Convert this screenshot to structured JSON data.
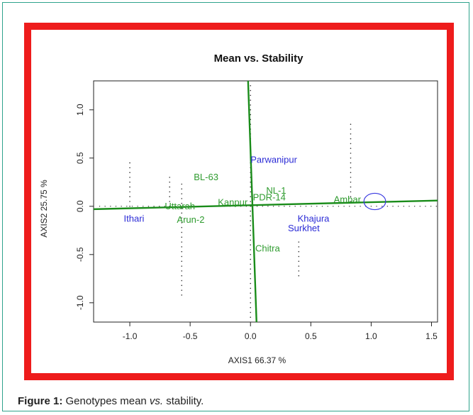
{
  "figure": {
    "caption_label": "Figure 1:",
    "caption_pre": "Genotypes mean ",
    "caption_italic": "vs.",
    "caption_post": " stability."
  },
  "colors": {
    "frame": "#ee1c1c",
    "line": "#1a8c1a",
    "genotype_label": "#2b2bd6",
    "environment_label": "#2e9b2e",
    "circle": "#3a3ae0",
    "points": "#333333"
  },
  "chart_data": {
    "type": "scatter",
    "title": "Mean vs. Stability",
    "xlabel": "AXIS1 66.37 %",
    "ylabel": "AXIS2 25.75 %",
    "xlim": [
      -1.3,
      1.55
    ],
    "ylim": [
      -1.2,
      1.3
    ],
    "x_ticks": [
      {
        "v": -1.0,
        "label": "-1.0"
      },
      {
        "v": -0.5,
        "label": "-0.5"
      },
      {
        "v": 0.0,
        "label": "0.0"
      },
      {
        "v": 0.5,
        "label": "0.5"
      },
      {
        "v": 1.0,
        "label": "1.0"
      },
      {
        "v": 1.5,
        "label": "1.5"
      }
    ],
    "y_ticks": [
      {
        "v": -1.0,
        "label": "-1.0"
      },
      {
        "v": -0.5,
        "label": "-0.5"
      },
      {
        "v": 0.0,
        "label": "0.0"
      },
      {
        "v": 0.5,
        "label": "0.5"
      },
      {
        "v": 1.0,
        "label": "1.0"
      }
    ],
    "aec_abscissa": {
      "x1": -1.3,
      "y1": -0.03,
      "x2": 1.55,
      "y2": 0.06
    },
    "aec_ordinate": {
      "x1": -0.02,
      "y1": 1.3,
      "x2": 0.05,
      "y2": -1.2
    },
    "ideal_circle": {
      "x": 1.03,
      "y": 0.05,
      "rx": 0.1,
      "ry": 0.1
    },
    "genotypes": [
      {
        "name": "Parwanipur",
        "x": 0.0,
        "y": 0.45
      },
      {
        "name": "Ithari",
        "x": -1.05,
        "y": -0.16
      },
      {
        "name": "Khajura",
        "x": 0.39,
        "y": -0.16
      },
      {
        "name": "Surkhet",
        "x": 0.31,
        "y": -0.26
      }
    ],
    "environments": [
      {
        "name": "BL-63",
        "x": -0.47,
        "y": 0.27
      },
      {
        "name": "NL-1",
        "x": 0.13,
        "y": 0.13
      },
      {
        "name": "PDR-14",
        "x": 0.02,
        "y": 0.06
      },
      {
        "name": "Kanpur",
        "x": -0.27,
        "y": 0.01
      },
      {
        "name": "Uttarah",
        "x": -0.71,
        "y": -0.03
      },
      {
        "name": "Arun-2",
        "x": -0.61,
        "y": -0.17
      },
      {
        "name": "Chitra",
        "x": 0.04,
        "y": -0.47
      },
      {
        "name": "Ambar",
        "x": 0.69,
        "y": 0.04
      }
    ],
    "projection_lines": [
      {
        "x": -1.0,
        "y1": 0.45,
        "y2": 0.0
      },
      {
        "x": -0.67,
        "y1": 0.3,
        "y2": 0.0
      },
      {
        "x": -0.57,
        "y1": 0.27,
        "y2": -0.92
      },
      {
        "x": 0.0,
        "y1": 1.28,
        "y2": -1.15
      },
      {
        "x": 0.4,
        "y1": -0.35,
        "y2": -0.72
      },
      {
        "x": 0.83,
        "y1": 0.9,
        "y2": 0.05
      }
    ]
  }
}
